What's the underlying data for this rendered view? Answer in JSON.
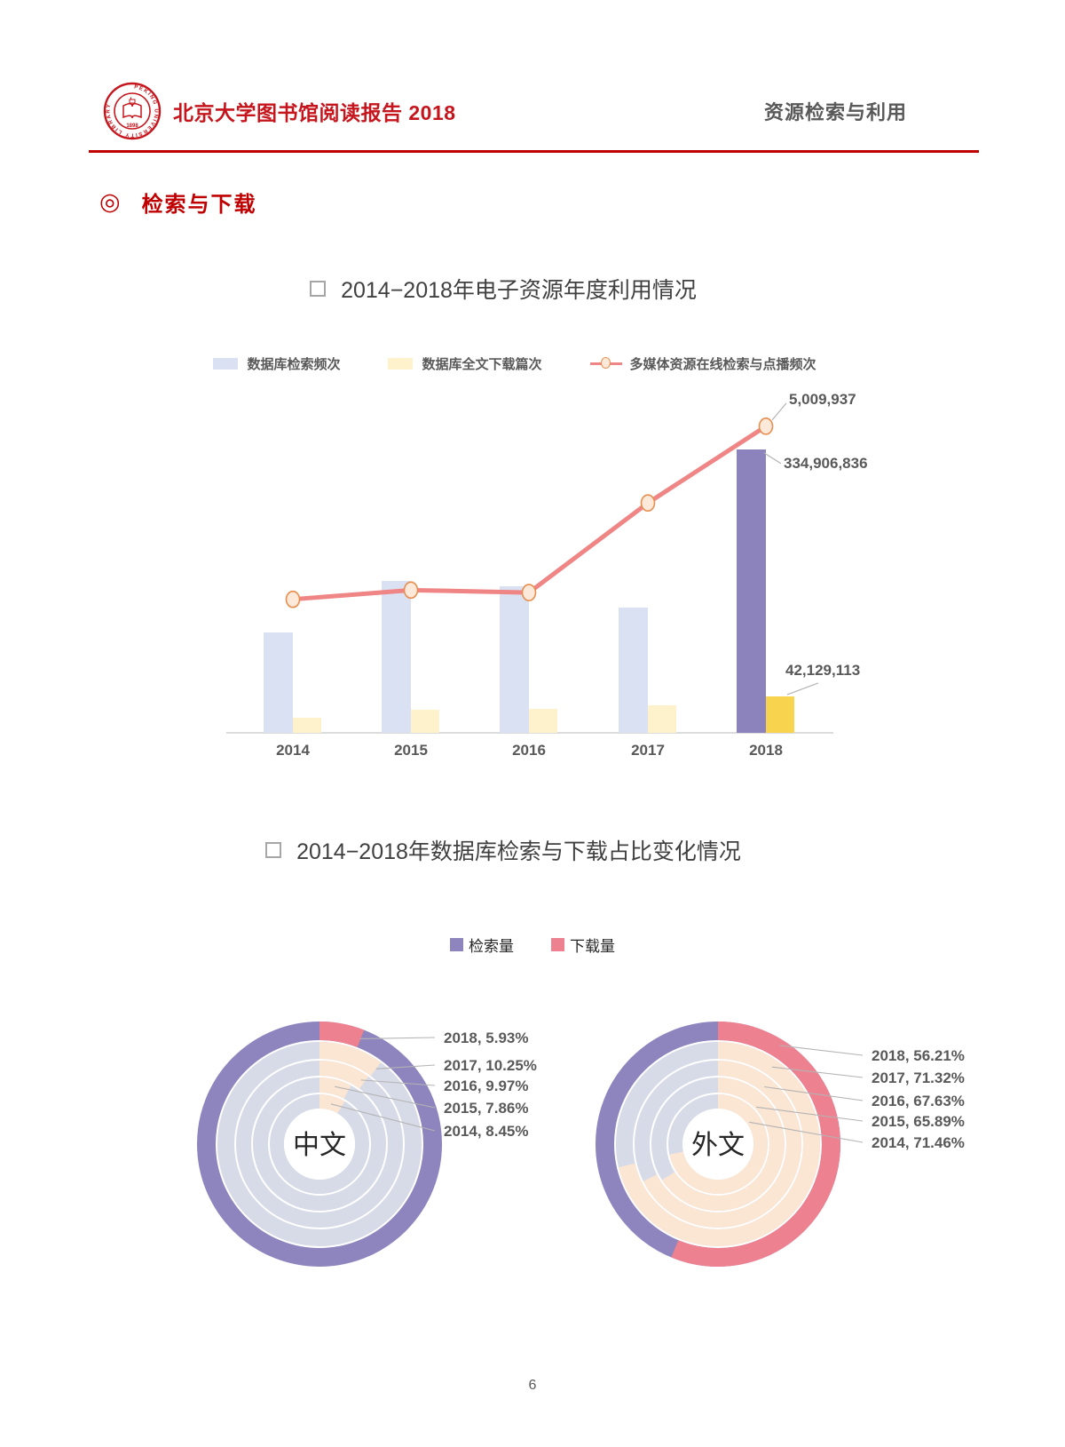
{
  "header": {
    "title": "北京大学图书馆阅读报告 2018",
    "section": "资源检索与利用",
    "logo_ring_text": "PEKING UNIVERSITY LIBRARY",
    "logo_year": "1898"
  },
  "section_heading": {
    "bullet": "◎",
    "label": "检索与下载"
  },
  "figure1": {
    "title": "2014−2018年电子资源年度利用情况"
  },
  "figure2": {
    "title": "2014−2018年数据库检索与下载占比变化情况"
  },
  "colors": {
    "brand_red": "#c5161d",
    "rule_red": "#c00000",
    "text_gray": "#595959",
    "bar_blue": "#dae1f3",
    "bar_purple": "#8c83bd",
    "bar_yellow_light": "#fdf2cc",
    "bar_gold": "#f8d34e",
    "line_salmon": "#ef8585",
    "marker_fill": "#fde9d9",
    "marker_stroke": "#e78e4e",
    "donut_search_current": "#8e85bf",
    "donut_download_current": "#ee8190",
    "donut_search_past": "#d7dbe7",
    "donut_download_past": "#fbe5d3",
    "leader_gray": "#b3b3b3"
  },
  "chart_data": [
    {
      "type": "bar",
      "subtype": "bar+line combo, dual axis",
      "title": "2014−2018年电子资源年度利用情况",
      "categories": [
        "2014",
        "2015",
        "2016",
        "2017",
        "2018"
      ],
      "series": [
        {
          "name": "数据库检索频次",
          "type": "bar",
          "axis": "left",
          "values": [
            118600000,
            179000000,
            173500000,
            148200000,
            334906836
          ]
        },
        {
          "name": "数据库全文下载篇次",
          "type": "bar",
          "axis": "left",
          "values": [
            17600000,
            26400000,
            27500000,
            31900000,
            42129113
          ]
        },
        {
          "name": "多媒体资源在线检索与点播频次",
          "type": "line",
          "axis": "right",
          "values": [
            2190000,
            2340000,
            2300000,
            3760000,
            5009937
          ]
        }
      ],
      "axes": {
        "left_max": 400000000,
        "right_max": 5500000,
        "gridlines": false,
        "axis_labels_hidden": true
      },
      "annotations": [
        {
          "series": "多媒体资源在线检索与点播频次",
          "category": "2018",
          "text": "5,009,937"
        },
        {
          "series": "数据库检索频次",
          "category": "2018",
          "text": "334,906,836"
        },
        {
          "series": "数据库全文下载篇次",
          "category": "2018",
          "text": "42,129,113"
        }
      ],
      "highlight": "2018 bars use saturated purple/gold; earlier years muted blue/cream"
    },
    {
      "type": "pie",
      "subtype": "multi-ring donut",
      "center_label": "中文",
      "legend": [
        "检索量",
        "下载量"
      ],
      "rings_outer_to_inner": [
        "2018",
        "2017",
        "2016",
        "2015",
        "2014"
      ],
      "download_pct": [
        5.93,
        10.25,
        9.97,
        7.86,
        8.45
      ],
      "callout_labels": [
        "2018, 5.93%",
        "2017, 10.25%",
        "2016, 9.97%",
        "2015, 7.86%",
        "2014, 8.45%"
      ]
    },
    {
      "type": "pie",
      "subtype": "multi-ring donut",
      "center_label": "外文",
      "legend": [
        "检索量",
        "下载量"
      ],
      "rings_outer_to_inner": [
        "2018",
        "2017",
        "2016",
        "2015",
        "2014"
      ],
      "download_pct": [
        56.21,
        71.32,
        67.63,
        65.89,
        71.46
      ],
      "callout_labels": [
        "2018, 56.21%",
        "2017, 71.32%",
        "2016, 67.63%",
        "2015, 65.89%",
        "2014, 71.46%"
      ]
    }
  ],
  "legend2": {
    "items": [
      "检索量",
      "下载量"
    ]
  },
  "footer": {
    "page_number": "6"
  }
}
